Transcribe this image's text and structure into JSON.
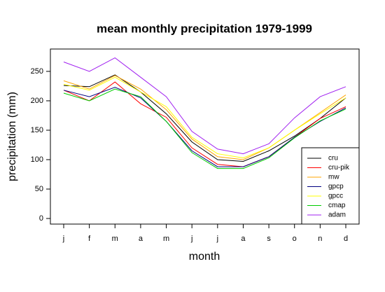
{
  "chart_data": {
    "type": "line",
    "title": "mean monthly precipitation 1979-1999",
    "x_label": "month",
    "y_label": "precipitation (mm)",
    "categories": [
      "j",
      "f",
      "m",
      "a",
      "m",
      "j",
      "j",
      "a",
      "s",
      "o",
      "n",
      "d"
    ],
    "series": [
      {
        "name": "cru",
        "color": "#000000",
        "values": [
          226,
          224,
          244,
          215,
          178,
          130,
          100,
          97,
          115,
          140,
          170,
          205
        ]
      },
      {
        "name": "cru-pik",
        "color": "#ff0000",
        "values": [
          218,
          200,
          232,
          195,
          172,
          120,
          92,
          88,
          105,
          138,
          170,
          190
        ]
      },
      {
        "name": "mw",
        "color": "#ffa500",
        "values": [
          234,
          220,
          243,
          220,
          185,
          135,
          105,
          100,
          120,
          150,
          180,
          210
        ]
      },
      {
        "name": "gpcp",
        "color": "#000080",
        "values": [
          218,
          207,
          223,
          205,
          165,
          115,
          88,
          88,
          105,
          138,
          165,
          188
        ]
      },
      {
        "name": "gpcc",
        "color": "#ffff00",
        "values": [
          228,
          218,
          240,
          215,
          190,
          138,
          110,
          103,
          120,
          150,
          178,
          205
        ]
      },
      {
        "name": "cmap",
        "color": "#00cc00",
        "values": [
          213,
          200,
          220,
          207,
          165,
          112,
          85,
          85,
          103,
          137,
          166,
          186
        ]
      },
      {
        "name": "adam",
        "color": "#a020f0",
        "values": [
          266,
          250,
          273,
          240,
          207,
          148,
          118,
          110,
          127,
          171,
          207,
          224
        ]
      }
    ],
    "ylim": [
      -9.5,
      288
    ],
    "yticks": [
      0,
      50,
      100,
      150,
      200,
      250
    ],
    "legend": "bottom-right"
  }
}
